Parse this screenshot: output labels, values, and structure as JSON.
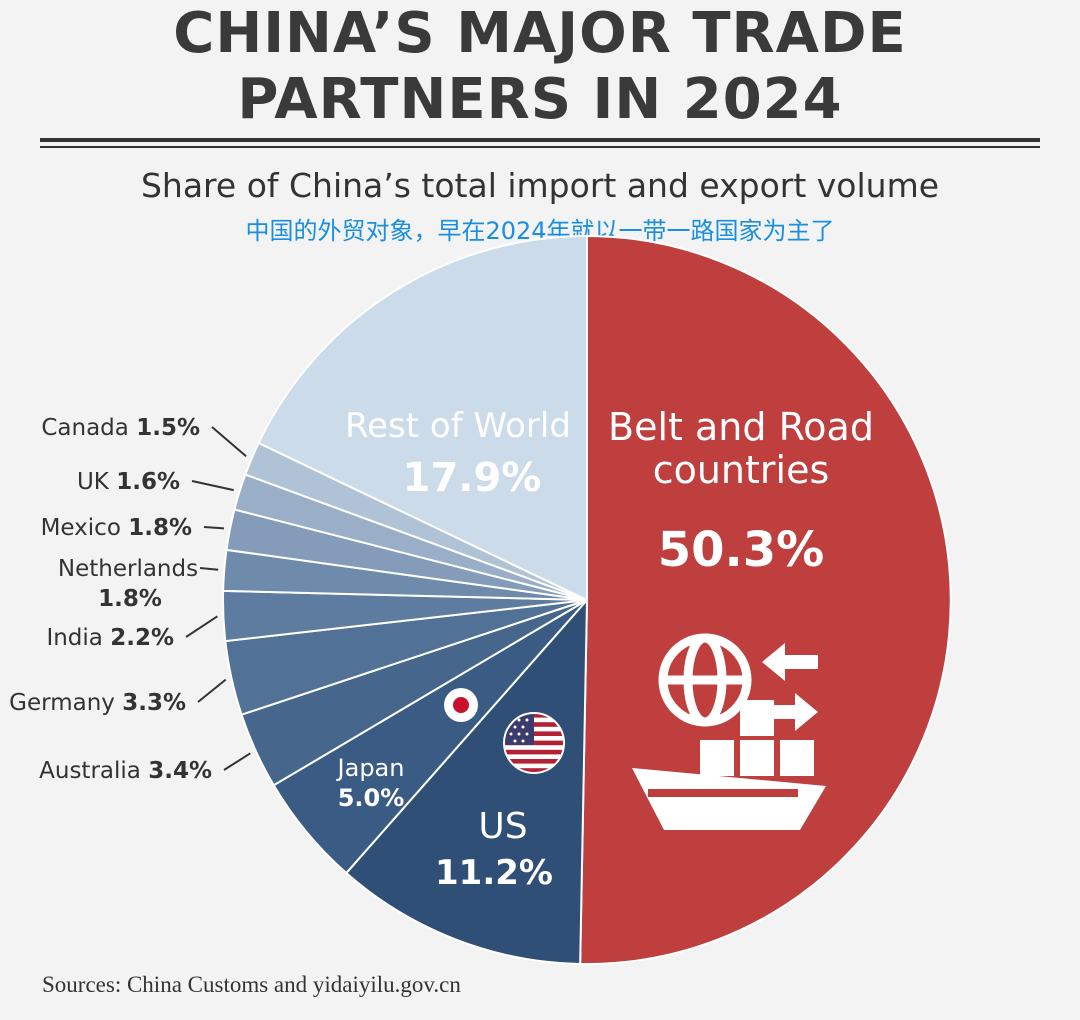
{
  "header": {
    "title_line1": "CHINA’S MAJOR TRADE",
    "title_line2": "PARTNERS IN 2024",
    "subtitle": "Share of China’s total import and export volume",
    "subtitle_cn": "中国的外贸对象，早在2024年就以一带一路国家为主了"
  },
  "footer": {
    "source": "Sources: China Customs and yidaiyilu.gov.cn"
  },
  "colors": {
    "belt_road": "#bf3e3e",
    "us": "#2f4f77",
    "rest_of_world": "#ccdbea"
  },
  "icons": [
    "japan-flag-icon",
    "us-flag-icon",
    "globe-icon",
    "arrows-icon",
    "cargo-ship-icon"
  ],
  "chart_data": {
    "type": "pie",
    "title": "CHINA’S MAJOR TRADE PARTNERS IN 2024",
    "subtitle": "Share of China’s total import and export volume",
    "unit": "%",
    "slices": [
      {
        "label": "Belt and Road countries",
        "value": 50.3,
        "display": "50.3%",
        "color": "#bf3e3e"
      },
      {
        "label": "US",
        "value": 11.2,
        "display": "11.2%",
        "color": "#2f4f77"
      },
      {
        "label": "Japan",
        "value": 5.0,
        "display": "5.0%",
        "color": "#3a5b83"
      },
      {
        "label": "Australia",
        "value": 3.4,
        "display": "3.4%",
        "color": "#46668c"
      },
      {
        "label": "Germany",
        "value": 3.3,
        "display": "3.3%",
        "color": "#527196"
      },
      {
        "label": "India",
        "value": 2.2,
        "display": "2.2%",
        "color": "#5e7ca0"
      },
      {
        "label": "Netherlands",
        "value": 1.8,
        "display": "1.8%",
        "color": "#6f8bac"
      },
      {
        "label": "Mexico",
        "value": 1.8,
        "display": "1.8%",
        "color": "#849cb9"
      },
      {
        "label": "UK",
        "value": 1.6,
        "display": "1.6%",
        "color": "#9aafc7"
      },
      {
        "label": "Canada",
        "value": 1.5,
        "display": "1.5%",
        "color": "#b0c2d6"
      },
      {
        "label": "Rest of World",
        "value": 17.9,
        "display": "17.9%",
        "color": "#ccdbea"
      }
    ]
  }
}
